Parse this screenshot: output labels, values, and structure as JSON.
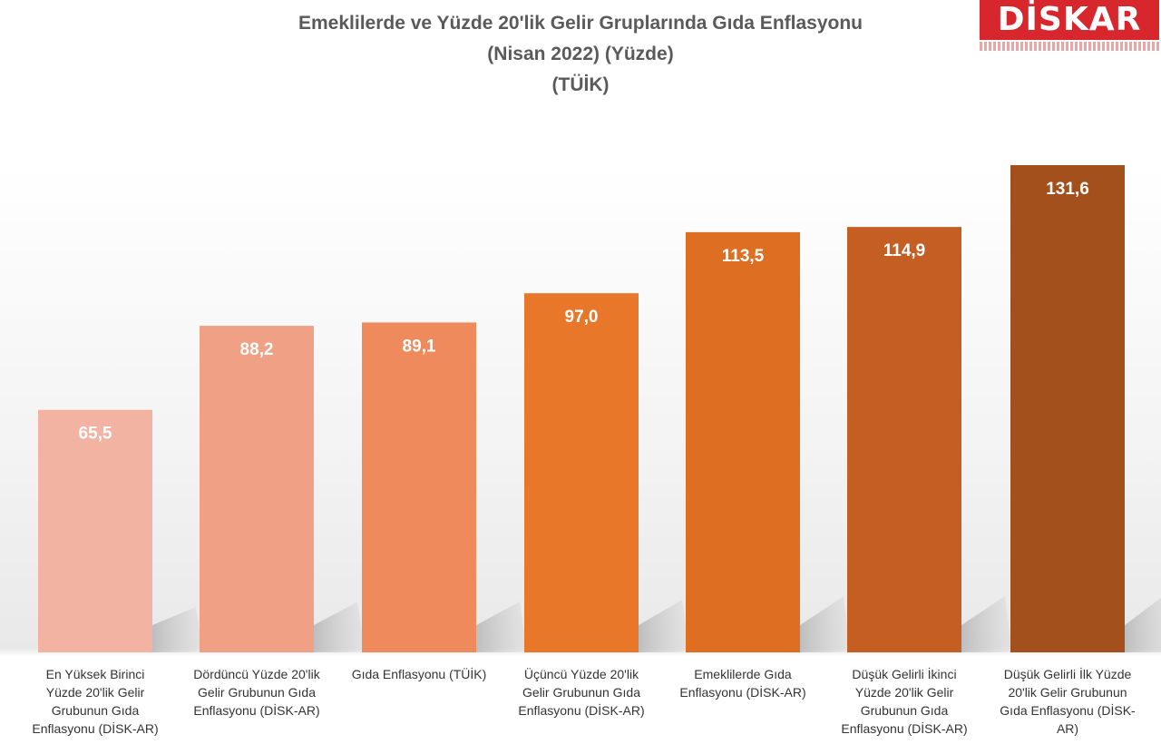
{
  "title_lines": [
    "Emeklilerde ve Yüzde 20'lik Gelir Gruplarında Gıda Enflasyonu",
    "(Nisan 2022) (Yüzde)",
    "(TÜİK)"
  ],
  "logo_text": "DİSK-AR",
  "chart_data": {
    "type": "bar",
    "title": "Emeklilerde ve Yüzde 20'lik Gelir Gruplarında Gıda Enflasyonu (Nisan 2022) (Yüzde) (TÜİK)",
    "categories": [
      [
        "En Yüksek Birinci",
        "Yüzde 20'lik Gelir",
        "Grubunun Gıda",
        "Enflasyonu (DİSK-AR)"
      ],
      [
        "Dördüncü Yüzde 20'lik",
        "Gelir Grubunun Gıda",
        "Enflasyonu (DİSK-AR)"
      ],
      [
        "Gıda Enflasyonu (TÜİK)"
      ],
      [
        "Üçüncü Yüzde 20'lik",
        "Gelir Grubunun Gıda",
        "Enflasyonu (DİSK-AR)"
      ],
      [
        "Emeklilerde Gıda",
        "Enflasyonu (DİSK-AR)"
      ],
      [
        "Düşük Gelirli İkinci",
        "Yüzde 20'lik Gelir",
        "Grubunun Gıda",
        "Enflasyonu (DİSK-AR)"
      ],
      [
        "Düşük Gelirli İlk Yüzde",
        "20'lik Gelir Grubunun",
        "Gıda Enflasyonu (DİSK-",
        "AR)"
      ]
    ],
    "values": [
      65.5,
      88.2,
      89.1,
      97.0,
      113.5,
      114.9,
      131.6
    ],
    "value_labels": [
      "65,5",
      "88,2",
      "89,1",
      "97,0",
      "113,5",
      "114,9",
      "131,6"
    ],
    "bar_colors": [
      "#f3b3a2",
      "#f0a084",
      "#ee8a5c",
      "#e8772a",
      "#dd6e22",
      "#c45e22",
      "#a3501d"
    ],
    "xlabel": "",
    "ylabel": "",
    "ylim": [
      0,
      131.6
    ],
    "grid": false,
    "legend": "none"
  }
}
